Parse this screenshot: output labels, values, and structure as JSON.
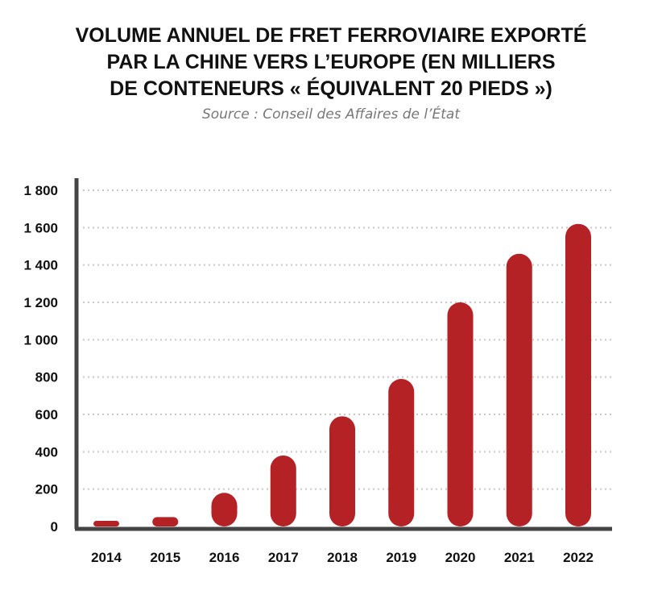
{
  "title_lines": [
    "VOLUME ANNUEL DE FRET FERROVIAIRE EXPORTÉ",
    "PAR LA CHINE VERS L’EUROPE (EN MILLIERS",
    "DE CONTENEURS « ÉQUIVALENT 20 PIEDS »)"
  ],
  "subtitle": "Source : Conseil des Affaires de l’État",
  "colors": {
    "bar": "#b52226",
    "axis": "#444444",
    "grid": "#c8c8c8"
  },
  "chart_data": {
    "type": "bar",
    "title": "VOLUME ANNUEL DE FRET FERROVIAIRE EXPORTÉ PAR LA CHINE VERS L’EUROPE (EN MILLIERS DE CONTENEURS « ÉQUIVALENT 20 PIEDS »)",
    "subtitle": "Source : Conseil des Affaires de l’État",
    "categories": [
      "2014",
      "2015",
      "2016",
      "2017",
      "2018",
      "2019",
      "2020",
      "2021",
      "2022"
    ],
    "values": [
      30,
      50,
      180,
      380,
      590,
      790,
      1200,
      1460,
      1620
    ],
    "yticks": [
      0,
      200,
      400,
      600,
      800,
      1000,
      1200,
      1400,
      1600,
      1800
    ],
    "ytick_labels": [
      "0",
      "200",
      "400",
      "600",
      "800",
      "1 000",
      "1 200",
      "1 400",
      "1 600",
      "1 800"
    ],
    "ylim": [
      0,
      1800
    ],
    "xlabel": "",
    "ylabel": "",
    "grid": true,
    "legend": false
  }
}
